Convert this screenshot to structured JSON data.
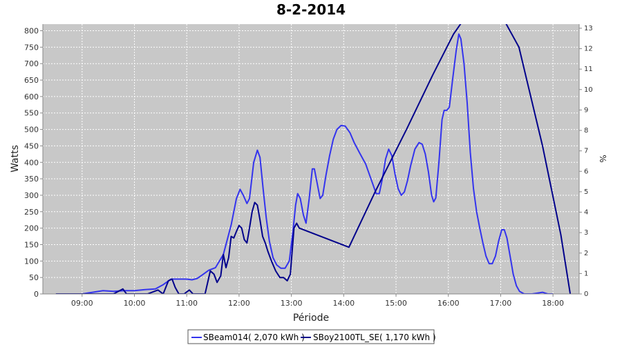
{
  "chart_data": {
    "type": "line",
    "title": "8-2-2014",
    "xlabel": "Période",
    "ylabel": "Watts",
    "y2label": "%",
    "xlim": [
      8.25,
      18.5
    ],
    "ylim": [
      0,
      820
    ],
    "y2lim": [
      0,
      13.2
    ],
    "grid": true,
    "legend_position": "bottom",
    "x_ticks": [
      "09:00",
      "10:00",
      "11:00",
      "12:00",
      "13:00",
      "14:00",
      "15:00",
      "16:00",
      "17:00",
      "18:00"
    ],
    "y_ticks": [
      "0",
      "50",
      "100",
      "150",
      "200",
      "250",
      "300",
      "350",
      "400",
      "450",
      "500",
      "550",
      "600",
      "650",
      "700",
      "750",
      "800"
    ],
    "y2_ticks": [
      "0",
      "1",
      "2",
      "3",
      "4",
      "5",
      "6",
      "7",
      "8",
      "9",
      "10",
      "11",
      "12",
      "13"
    ],
    "series": [
      {
        "name": "SBeam014( 2,070 kWh )",
        "color": "#3333ee",
        "points": [
          [
            8.5,
            0
          ],
          [
            9.0,
            0
          ],
          [
            9.2,
            5
          ],
          [
            9.4,
            10
          ],
          [
            9.6,
            8
          ],
          [
            9.8,
            10
          ],
          [
            10.0,
            10
          ],
          [
            10.2,
            13
          ],
          [
            10.4,
            15
          ],
          [
            10.55,
            28
          ],
          [
            10.7,
            45
          ],
          [
            10.85,
            45
          ],
          [
            11.0,
            45
          ],
          [
            11.1,
            43
          ],
          [
            11.2,
            47
          ],
          [
            11.3,
            58
          ],
          [
            11.42,
            72
          ],
          [
            11.55,
            80
          ],
          [
            11.7,
            120
          ],
          [
            11.85,
            210
          ],
          [
            11.95,
            290
          ],
          [
            12.02,
            318
          ],
          [
            12.08,
            300
          ],
          [
            12.15,
            275
          ],
          [
            12.2,
            290
          ],
          [
            12.28,
            400
          ],
          [
            12.35,
            437
          ],
          [
            12.4,
            415
          ],
          [
            12.46,
            320
          ],
          [
            12.52,
            230
          ],
          [
            12.58,
            160
          ],
          [
            12.65,
            110
          ],
          [
            12.72,
            88
          ],
          [
            12.8,
            78
          ],
          [
            12.88,
            78
          ],
          [
            12.96,
            100
          ],
          [
            13.03,
            190
          ],
          [
            13.08,
            270
          ],
          [
            13.12,
            305
          ],
          [
            13.17,
            290
          ],
          [
            13.23,
            240
          ],
          [
            13.28,
            215
          ],
          [
            13.34,
            290
          ],
          [
            13.4,
            380
          ],
          [
            13.44,
            380
          ],
          [
            13.5,
            330
          ],
          [
            13.55,
            290
          ],
          [
            13.6,
            300
          ],
          [
            13.66,
            360
          ],
          [
            13.73,
            420
          ],
          [
            13.8,
            470
          ],
          [
            13.87,
            500
          ],
          [
            13.95,
            512
          ],
          [
            14.03,
            510
          ],
          [
            14.12,
            490
          ],
          [
            14.2,
            460
          ],
          [
            14.3,
            430
          ],
          [
            14.42,
            395
          ],
          [
            14.52,
            350
          ],
          [
            14.62,
            305
          ],
          [
            14.68,
            305
          ],
          [
            14.74,
            350
          ],
          [
            14.8,
            410
          ],
          [
            14.86,
            440
          ],
          [
            14.92,
            420
          ],
          [
            14.98,
            365
          ],
          [
            15.04,
            320
          ],
          [
            15.1,
            300
          ],
          [
            15.16,
            310
          ],
          [
            15.22,
            345
          ],
          [
            15.28,
            390
          ],
          [
            15.36,
            440
          ],
          [
            15.44,
            460
          ],
          [
            15.5,
            455
          ],
          [
            15.56,
            425
          ],
          [
            15.62,
            370
          ],
          [
            15.68,
            300
          ],
          [
            15.72,
            280
          ],
          [
            15.76,
            292
          ],
          [
            15.82,
            400
          ],
          [
            15.88,
            530
          ],
          [
            15.92,
            558
          ],
          [
            15.97,
            558
          ],
          [
            16.02,
            568
          ],
          [
            16.08,
            650
          ],
          [
            16.15,
            740
          ],
          [
            16.2,
            790
          ],
          [
            16.24,
            775
          ],
          [
            16.3,
            700
          ],
          [
            16.36,
            580
          ],
          [
            16.42,
            430
          ],
          [
            16.48,
            320
          ],
          [
            16.54,
            250
          ],
          [
            16.6,
            200
          ],
          [
            16.66,
            155
          ],
          [
            16.72,
            115
          ],
          [
            16.78,
            92
          ],
          [
            16.84,
            92
          ],
          [
            16.9,
            115
          ],
          [
            16.96,
            160
          ],
          [
            17.02,
            195
          ],
          [
            17.07,
            195
          ],
          [
            17.12,
            170
          ],
          [
            17.18,
            115
          ],
          [
            17.24,
            60
          ],
          [
            17.3,
            25
          ],
          [
            17.36,
            8
          ],
          [
            17.45,
            0
          ],
          [
            17.6,
            0
          ],
          [
            17.8,
            5
          ],
          [
            17.9,
            0
          ],
          [
            18.0,
            0
          ]
        ]
      },
      {
        "name": "SBoy2100TL_SE( 1,170 kWh )",
        "color": "#00008b",
        "points": [
          [
            8.5,
            0
          ],
          [
            9.6,
            0
          ],
          [
            9.78,
            15
          ],
          [
            9.85,
            0
          ],
          [
            10.0,
            0
          ],
          [
            10.25,
            0
          ],
          [
            10.45,
            12
          ],
          [
            10.55,
            0
          ],
          [
            10.65,
            40
          ],
          [
            10.72,
            45
          ],
          [
            10.78,
            20
          ],
          [
            10.85,
            0
          ],
          [
            10.95,
            0
          ],
          [
            11.05,
            12
          ],
          [
            11.12,
            0
          ],
          [
            11.25,
            0
          ],
          [
            11.35,
            0
          ],
          [
            11.45,
            70
          ],
          [
            11.52,
            60
          ],
          [
            11.58,
            35
          ],
          [
            11.65,
            55
          ],
          [
            11.7,
            120
          ],
          [
            11.75,
            80
          ],
          [
            11.8,
            110
          ],
          [
            11.85,
            175
          ],
          [
            11.9,
            170
          ],
          [
            11.95,
            190
          ],
          [
            12.0,
            208
          ],
          [
            12.05,
            200
          ],
          [
            12.1,
            165
          ],
          [
            12.15,
            155
          ],
          [
            12.2,
            200
          ],
          [
            12.25,
            250
          ],
          [
            12.3,
            278
          ],
          [
            12.35,
            270
          ],
          [
            12.4,
            225
          ],
          [
            12.45,
            175
          ],
          [
            12.5,
            155
          ],
          [
            12.55,
            130
          ],
          [
            12.62,
            100
          ],
          [
            12.7,
            70
          ],
          [
            12.78,
            50
          ],
          [
            12.85,
            50
          ],
          [
            12.92,
            40
          ],
          [
            12.98,
            60
          ],
          [
            13.05,
            200
          ],
          [
            13.1,
            215
          ],
          [
            13.15,
            200
          ],
          [
            14.1,
            142
          ],
          [
            14.6,
            310
          ],
          [
            15.2,
            500
          ],
          [
            15.7,
            665
          ],
          [
            16.1,
            790
          ],
          [
            16.45,
            870
          ],
          [
            16.9,
            880
          ],
          [
            17.35,
            750
          ],
          [
            17.8,
            450
          ],
          [
            18.15,
            180
          ],
          [
            18.33,
            0
          ]
        ]
      }
    ]
  }
}
